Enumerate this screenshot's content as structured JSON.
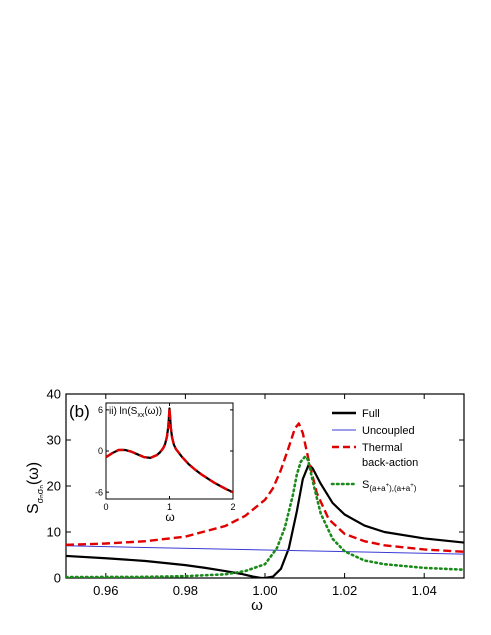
{
  "chart_data": [
    {
      "type": "line",
      "panel_label": "(b)",
      "xlabel": "ω",
      "ylabel": "S",
      "ylabel_sub": "σₙσₙ",
      "ylabel_suffix": "(ω)",
      "xlim": [
        0.95,
        1.05
      ],
      "ylim": [
        0,
        40
      ],
      "xticks": [
        0.96,
        0.98,
        1.0,
        1.02,
        1.04
      ],
      "xtick_labels": [
        "0.96",
        "0.98",
        "1.00",
        "1.02",
        "1.04"
      ],
      "yticks": [
        0,
        10,
        20,
        30,
        40
      ],
      "ytick_labels": [
        "0",
        "10",
        "20",
        "30",
        "40"
      ],
      "legend_position": "top-right",
      "series": [
        {
          "name": "Full",
          "color": "#000000",
          "style": "solid-thick",
          "x": [
            0.95,
            0.96,
            0.97,
            0.98,
            0.985,
            0.99,
            0.994,
            0.997,
            0.999,
            1.0,
            1.002,
            1.004,
            1.006,
            1.008,
            1.0095,
            1.011,
            1.012,
            1.014,
            1.017,
            1.02,
            1.025,
            1.03,
            1.04,
            1.05
          ],
          "y": [
            4.8,
            4.3,
            3.7,
            2.8,
            2.2,
            1.5,
            0.9,
            0.3,
            0.0,
            0.0,
            0.3,
            2.0,
            6.5,
            14.5,
            21.5,
            24.7,
            23.8,
            20.5,
            16.3,
            13.8,
            11.4,
            10.0,
            8.6,
            7.7
          ]
        },
        {
          "name": "Uncoupled",
          "color": "#3a3ad6",
          "style": "solid-thin",
          "x": [
            0.95,
            1.05
          ],
          "y": [
            7.0,
            5.2
          ]
        },
        {
          "name": "Thermal\nback-action",
          "color": "#e00000",
          "style": "dashed",
          "x": [
            0.95,
            0.96,
            0.97,
            0.98,
            0.99,
            0.995,
            1.0,
            1.002,
            1.004,
            1.006,
            1.0075,
            1.0085,
            1.0095,
            1.011,
            1.013,
            1.016,
            1.02,
            1.025,
            1.03,
            1.04,
            1.05
          ],
          "y": [
            7.2,
            7.5,
            8.0,
            9.0,
            11.3,
            13.5,
            17.0,
            19.5,
            23.5,
            28.5,
            32.5,
            33.6,
            31.5,
            25.5,
            18.5,
            12.8,
            9.6,
            8.0,
            7.1,
            6.2,
            5.7
          ]
        },
        {
          "name": "S₍a+a⁺₎,₍a+a⁺₎",
          "color": "#1a8a1a",
          "style": "dotted",
          "x": [
            0.95,
            0.97,
            0.98,
            0.99,
            0.995,
            1.0,
            1.003,
            1.005,
            1.007,
            1.008,
            1.009,
            1.01,
            1.0105,
            1.011,
            1.012,
            1.014,
            1.017,
            1.02,
            1.025,
            1.03,
            1.04,
            1.05
          ],
          "y": [
            0.2,
            0.25,
            0.4,
            0.8,
            1.5,
            3.0,
            6.5,
            11.0,
            18.0,
            22.5,
            25.3,
            26.3,
            26.3,
            25.0,
            21.0,
            14.0,
            8.5,
            5.8,
            3.8,
            3.0,
            2.2,
            1.8
          ]
        }
      ]
    },
    {
      "type": "line",
      "title": "ii) ln(S",
      "title_sub": "xx",
      "title_suffix": "(ω))",
      "xlabel": "ω",
      "xlim": [
        0,
        2
      ],
      "ylim": [
        -7,
        7
      ],
      "xticks": [
        0,
        1,
        2
      ],
      "xtick_labels": [
        "0",
        "1",
        "2"
      ],
      "yticks": [
        -6,
        0,
        6
      ],
      "ytick_labels": [
        "-6",
        "0",
        "6"
      ],
      "series": [
        {
          "color": "#000000",
          "style": "solid-thick",
          "x": [
            0,
            0.1,
            0.2,
            0.3,
            0.4,
            0.5,
            0.6,
            0.7,
            0.8,
            0.85,
            0.9,
            0.93,
            0.96,
            0.98,
            0.99,
            1.0,
            1.01,
            1.02,
            1.04,
            1.07,
            1.1,
            1.2,
            1.3,
            1.4,
            1.5,
            1.6,
            1.7,
            1.8,
            1.9,
            2.0
          ],
          "y": [
            -0.9,
            -0.3,
            0.15,
            0.15,
            -0.1,
            -0.5,
            -0.9,
            -1.0,
            -0.6,
            -0.2,
            0.4,
            1.0,
            2.1,
            3.5,
            4.8,
            6.2,
            4.9,
            3.5,
            2.0,
            0.9,
            0.3,
            -0.9,
            -1.9,
            -2.7,
            -3.4,
            -4.0,
            -4.6,
            -5.1,
            -5.6,
            -6.0
          ]
        },
        {
          "color": "#e00000",
          "style": "dashed",
          "x": [
            0,
            0.1,
            0.2,
            0.3,
            0.4,
            0.5,
            0.6,
            0.7,
            0.8,
            0.85,
            0.9,
            0.93,
            0.96,
            0.98,
            0.99,
            1.0,
            1.01,
            1.02,
            1.04,
            1.07,
            1.1,
            1.2,
            1.3,
            1.4,
            1.5,
            1.6,
            1.7,
            1.8,
            1.9,
            2.0
          ],
          "y": [
            -0.9,
            -0.3,
            0.15,
            0.15,
            -0.1,
            -0.5,
            -0.9,
            -1.0,
            -0.6,
            -0.2,
            0.4,
            1.0,
            2.1,
            3.5,
            4.8,
            6.2,
            4.9,
            3.5,
            2.0,
            0.9,
            0.3,
            -0.9,
            -1.9,
            -2.7,
            -3.4,
            -4.0,
            -4.6,
            -5.1,
            -5.6,
            -6.0
          ]
        }
      ]
    }
  ]
}
